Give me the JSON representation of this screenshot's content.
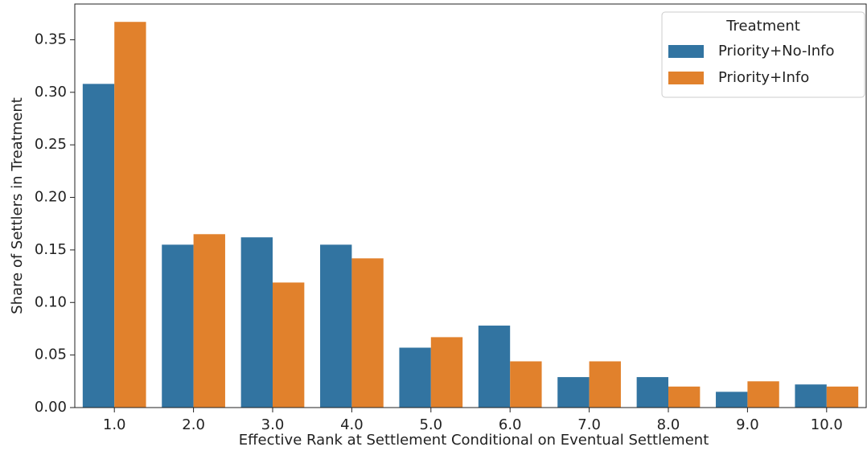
{
  "chart_data": {
    "type": "bar",
    "x_label": "Effective Rank at Settlement Conditional on Eventual Settlement",
    "y_label": "Share of Settlers in Treatment",
    "categories": [
      "1.0",
      "2.0",
      "3.0",
      "4.0",
      "5.0",
      "6.0",
      "7.0",
      "8.0",
      "9.0",
      "10.0"
    ],
    "series": [
      {
        "name": "Priority+No-Info",
        "color": "#3274a1",
        "values": [
          0.308,
          0.155,
          0.162,
          0.155,
          0.057,
          0.078,
          0.029,
          0.029,
          0.015,
          0.022
        ]
      },
      {
        "name": "Priority+Info",
        "color": "#e1812c",
        "values": [
          0.367,
          0.165,
          0.119,
          0.142,
          0.067,
          0.044,
          0.044,
          0.02,
          0.025,
          0.02
        ]
      }
    ],
    "legend_title": "Treatment",
    "legend_position": "upper-right",
    "ylim": [
      0,
      0.384
    ],
    "yticks": [
      {
        "value": 0,
        "label": "0.00"
      },
      {
        "value": 0.05,
        "label": "0.05"
      },
      {
        "value": 0.1,
        "label": "0.10"
      },
      {
        "value": 0.15,
        "label": "0.15"
      },
      {
        "value": 0.2,
        "label": "0.20"
      },
      {
        "value": 0.25,
        "label": "0.25"
      },
      {
        "value": 0.3,
        "label": "0.30"
      },
      {
        "value": 0.35,
        "label": "0.35"
      }
    ]
  }
}
